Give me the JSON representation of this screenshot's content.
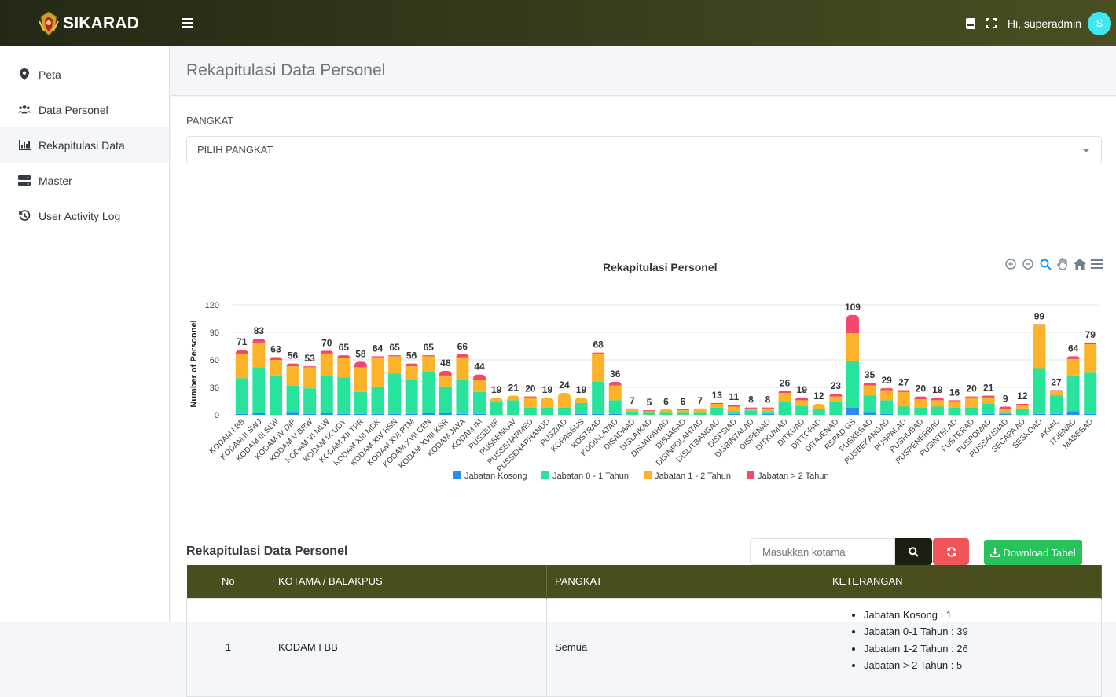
{
  "app": {
    "name": "SIKARAD",
    "greeting": "Hi, superadmin",
    "avatar_initial": "S"
  },
  "sidebar": {
    "items": [
      {
        "label": "Peta",
        "icon": "map-pin-icon"
      },
      {
        "label": "Data Personel",
        "icon": "users-icon"
      },
      {
        "label": "Rekapitulasi Data",
        "icon": "bar-chart-icon",
        "active": true
      },
      {
        "label": "Master",
        "icon": "server-icon"
      },
      {
        "label": "User Activity Log",
        "icon": "history-icon"
      }
    ]
  },
  "page": {
    "title": "Rekapitulasi Data Personel"
  },
  "filter": {
    "label": "PANGKAT",
    "selected": "PILIH PANGKAT"
  },
  "colors": {
    "kosong": "#2b8cf0",
    "j01": "#27e39b",
    "j12": "#fbb42a",
    "j2plus": "#f5476d",
    "header": "#4a4e1c"
  },
  "chart_data": {
    "type": "bar",
    "stacked": true,
    "title": "Rekapitulasi Personel",
    "ylabel": "Number of Personnel",
    "ylim": [
      0,
      120
    ],
    "yticks": [
      0,
      30,
      60,
      90,
      120
    ],
    "categories": [
      "KODAM I BB",
      "KODAM II SWJ",
      "KODAM III SLW",
      "KODAM IV DIP",
      "KODAM V BRW",
      "KODAM VI MLW",
      "KODAM IX UDY",
      "KODAM XII TPR",
      "KODAM XIII MDK",
      "KODAM XIV HSN",
      "KODAM XVI PTM",
      "KODAM XVII CEN",
      "KODAM XVIII KSR",
      "KODAM JAYA",
      "KODAM IM",
      "PUSSENIF",
      "PUSSENKAV",
      "PUSSENARMED",
      "PUSSENARHANUD",
      "PUSZIAD",
      "KOPASSUS",
      "KOSTRAD",
      "KODIKLATAD",
      "DISADAAD",
      "DISLAIKAD",
      "DISJARAHAD",
      "DISJASAD",
      "DISINFOLAHTAD",
      "DISLITBANGAD",
      "DISPSIAD",
      "DISBINTALAD",
      "DISPENAD",
      "DITKUMAD",
      "DITKUAD",
      "DITTOPAD",
      "DITAJENAD",
      "RSPAD GS",
      "PUSKESAD",
      "PUSBEKANGAD",
      "PUSPALAD",
      "PUSHUBAD",
      "PUSPENERBAD",
      "PUSINTELAD",
      "PUSTERAD",
      "PUSPOMAD",
      "PUSSANSIAD",
      "SECAPA AD",
      "SESKOAD",
      "AKMIL",
      "ITJENAD",
      "MABESAD"
    ],
    "totals": [
      71,
      83,
      63,
      56,
      53,
      70,
      65,
      58,
      64,
      65,
      56,
      65,
      48,
      66,
      44,
      19,
      21,
      20,
      19,
      24,
      19,
      68,
      36,
      7,
      5,
      6,
      6,
      7,
      13,
      11,
      8,
      8,
      26,
      19,
      12,
      23,
      109,
      35,
      29,
      27,
      20,
      19,
      16,
      20,
      21,
      9,
      12,
      99,
      27,
      64,
      79
    ],
    "series": [
      {
        "name": "Jabatan Kosong",
        "color": "#2b8cf0",
        "values": [
          1,
          2,
          0,
          3,
          1,
          2,
          1,
          1,
          1,
          1,
          1,
          2,
          2,
          1,
          1,
          0,
          0,
          0,
          0,
          0,
          1,
          1,
          1,
          0,
          0,
          0,
          0,
          0,
          0,
          1,
          0,
          1,
          0,
          0,
          0,
          0,
          8,
          3,
          1,
          0,
          0,
          0,
          0,
          0,
          1,
          1,
          0,
          1,
          1,
          4,
          1
        ]
      },
      {
        "name": "Jabatan 0 - 1 Tahun",
        "color": "#27e39b",
        "values": [
          39,
          50,
          43,
          29,
          28,
          40,
          40,
          24,
          30,
          44,
          37,
          45,
          29,
          37,
          24,
          14,
          16,
          8,
          8,
          8,
          12,
          35,
          15,
          4,
          3,
          3,
          3,
          3,
          8,
          3,
          5,
          3,
          14,
          10,
          6,
          14,
          51,
          18,
          15,
          9,
          8,
          9,
          8,
          8,
          11,
          2,
          7,
          50,
          20,
          39,
          45
        ]
      },
      {
        "name": "Jabatan 1 - 2 Tahun",
        "color": "#fbb42a",
        "values": [
          26,
          27,
          17,
          21,
          23,
          25,
          21,
          27,
          32,
          19,
          15,
          17,
          12,
          25,
          13,
          5,
          5,
          11,
          11,
          16,
          6,
          31,
          16,
          2,
          1,
          3,
          2,
          3,
          4,
          5,
          2,
          3,
          10,
          6,
          6,
          6,
          30,
          11,
          11,
          16,
          9,
          7,
          7,
          11,
          7,
          3,
          4,
          47,
          5,
          18,
          31
        ]
      },
      {
        "name": "Jabatan > 2 Tahun",
        "color": "#f5476d",
        "values": [
          5,
          4,
          3,
          3,
          1,
          3,
          3,
          6,
          1,
          1,
          3,
          1,
          5,
          3,
          6,
          0,
          0,
          1,
          0,
          0,
          0,
          1,
          4,
          1,
          1,
          0,
          1,
          1,
          1,
          2,
          1,
          1,
          2,
          3,
          0,
          3,
          20,
          3,
          2,
          2,
          3,
          3,
          1,
          1,
          2,
          3,
          1,
          1,
          1,
          3,
          2
        ]
      }
    ]
  },
  "table": {
    "title": "Rekapitulasi Data Personel",
    "search_placeholder": "Masukkan kotama",
    "download_label": "Download Tabel",
    "headers": [
      "No",
      "KOTAMA / BALAKPUS",
      "PANGKAT",
      "KETERANGAN"
    ],
    "rows": [
      {
        "no": "1",
        "kotama": "KODAM I BB",
        "pangkat": "Semua",
        "keterangan": [
          "Jabatan Kosong : 1",
          "Jabatan 0-1 Tahun : 39",
          "Jabatan 1-2 Tahun : 26",
          "Jabatan > 2 Tahun : 5"
        ]
      }
    ]
  }
}
